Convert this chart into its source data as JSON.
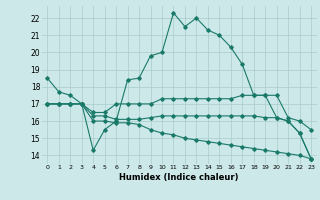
{
  "xlabel": "Humidex (Indice chaleur)",
  "bg_color": "#cce8e8",
  "grid_color": "#aacccc",
  "line_color": "#1a7a6a",
  "ylim": [
    13.5,
    22.7
  ],
  "xlim": [
    -0.5,
    23.5
  ],
  "yticks": [
    14,
    15,
    16,
    17,
    18,
    19,
    20,
    21,
    22
  ],
  "xticks": [
    0,
    1,
    2,
    3,
    4,
    5,
    6,
    7,
    8,
    9,
    10,
    11,
    12,
    13,
    14,
    15,
    16,
    17,
    18,
    19,
    20,
    21,
    22,
    23
  ],
  "series": [
    [
      18.5,
      17.7,
      17.5,
      17.0,
      14.3,
      15.5,
      16.0,
      18.4,
      18.5,
      19.8,
      20.0,
      22.3,
      21.5,
      22.0,
      21.3,
      21.0,
      20.3,
      19.3,
      17.5,
      17.5,
      16.2,
      16.0,
      15.3,
      13.8
    ],
    [
      17.0,
      17.0,
      17.0,
      17.0,
      16.5,
      16.5,
      17.0,
      17.0,
      17.0,
      17.0,
      17.3,
      17.3,
      17.3,
      17.3,
      17.3,
      17.3,
      17.3,
      17.5,
      17.5,
      17.5,
      17.5,
      16.2,
      16.0,
      15.5
    ],
    [
      17.0,
      17.0,
      17.0,
      17.0,
      16.3,
      16.3,
      16.1,
      16.1,
      16.1,
      16.2,
      16.3,
      16.3,
      16.3,
      16.3,
      16.3,
      16.3,
      16.3,
      16.3,
      16.3,
      16.2,
      16.2,
      16.0,
      15.3,
      13.8
    ],
    [
      17.0,
      17.0,
      17.0,
      17.0,
      16.0,
      16.0,
      15.9,
      15.9,
      15.8,
      15.5,
      15.3,
      15.2,
      15.0,
      14.9,
      14.8,
      14.7,
      14.6,
      14.5,
      14.4,
      14.3,
      14.2,
      14.1,
      14.0,
      13.8
    ]
  ]
}
